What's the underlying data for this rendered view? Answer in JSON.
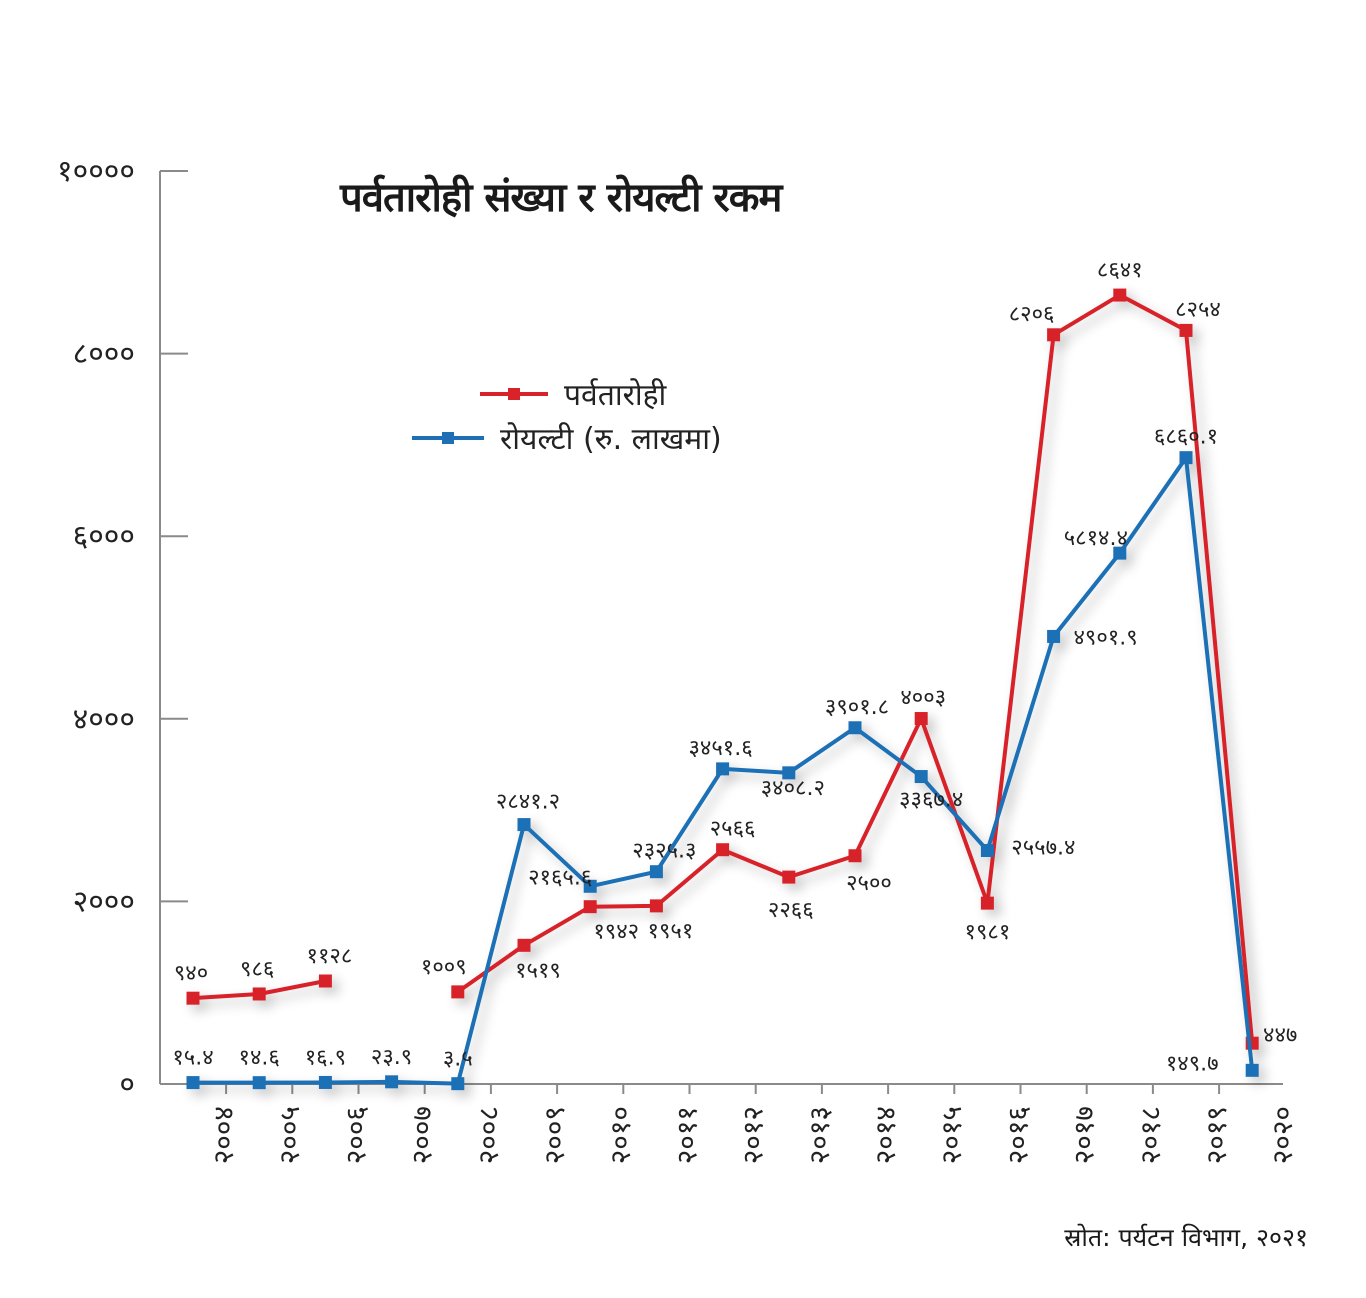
{
  "chart_data": {
    "type": "line",
    "title": "पर्वतारोही संख्या र रोयल्टी रकम",
    "source": "स्रोत: पर्यटन विभाग, २०२१",
    "ylim": [
      0,
      10000
    ],
    "y_ticks": [
      {
        "value": 0,
        "label": "०"
      },
      {
        "value": 2000,
        "label": "२०००"
      },
      {
        "value": 4000,
        "label": "४०००"
      },
      {
        "value": 6000,
        "label": "६०००"
      },
      {
        "value": 8000,
        "label": "८०००"
      },
      {
        "value": 10000,
        "label": "१००००"
      }
    ],
    "categories": [
      "२००४",
      "२००५",
      "२००६",
      "२००७",
      "२००८",
      "२००९",
      "२०१०",
      "२०११",
      "२०१२",
      "२०१३",
      "२०१४",
      "२०१५",
      "२०१६",
      "२०१७",
      "२०१८",
      "२०१९",
      "२०२०"
    ],
    "x": [
      2004,
      2005,
      2006,
      2007,
      2008,
      2009,
      2010,
      2011,
      2012,
      2013,
      2014,
      2015,
      2016,
      2017,
      2018,
      2019,
      2020
    ],
    "grid": false,
    "legend_position": "upper-left-center",
    "series": [
      {
        "name": "पर्वतारोही",
        "color": "#d8232a",
        "values": [
          940,
          986,
          1128,
          null,
          1009,
          1519,
          1942,
          1951,
          2566,
          2266,
          2500,
          4003,
          1981,
          8206,
          8641,
          8254,
          447
        ],
        "labels": [
          "९४०",
          "९८६",
          "११२८",
          null,
          "१००९",
          "१५१९",
          "१९४२",
          "१९५१",
          "२५६६",
          "२२६६",
          "२५००",
          "४००३",
          "१९८१",
          "८२०६",
          "८६४१",
          "८२५४",
          "४४७"
        ]
      },
      {
        "name": "रोयल्टी (रु. लाखमा)",
        "color": "#1f6fb5",
        "values": [
          15.4,
          14.6,
          16.9,
          23.9,
          3.5,
          2841.2,
          2165.6,
          2325.3,
          3451.6,
          3408.2,
          3901.8,
          3367.4,
          2557.4,
          4901.9,
          5814.4,
          6860.1,
          149.7
        ],
        "labels": [
          "१५.४",
          "१४.६",
          "१६.९",
          "२३.९",
          "३.५",
          "२८४१.२",
          "२१६५.६",
          "२३२५.३",
          "३४५१.६",
          "३४०८.२",
          "३९०१.८",
          "३३६७.४",
          "२५५७.४",
          "४९०१.९",
          "५८१४.४",
          "६८६०.१",
          "१४९.७"
        ]
      }
    ]
  }
}
